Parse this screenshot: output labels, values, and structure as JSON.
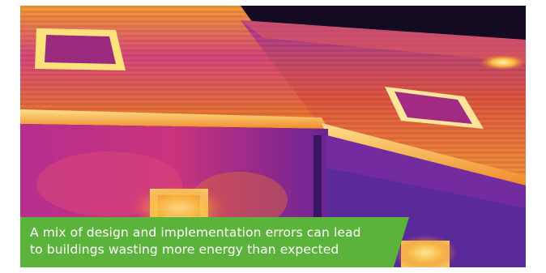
{
  "image": {
    "subject": "thermal-image-of-house",
    "palette": [
      "#1a0a2e",
      "#4b1b8f",
      "#8a2a9e",
      "#c8327a",
      "#e86a2a",
      "#f8b23a",
      "#fff3b0"
    ]
  },
  "caption": {
    "line1": "A mix of design and implementation errors can lead",
    "line2": "to buildings wasting more energy than expected",
    "background_color": "#5cb33c",
    "text_color": "#ffffff"
  }
}
